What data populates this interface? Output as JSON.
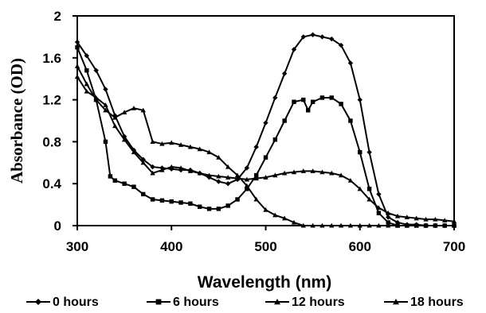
{
  "chart_data": {
    "type": "line",
    "xlabel": "Wavelength (nm)",
    "ylabel": "Absorbance (OD)",
    "xlim": [
      300,
      700
    ],
    "ylim": [
      0,
      2
    ],
    "x_ticks": [
      300,
      400,
      500,
      600,
      700
    ],
    "y_ticks": [
      0,
      0.4,
      0.8,
      1.2,
      1.6,
      2
    ],
    "y_tick_labels": [
      "0",
      "0.4",
      "0.8",
      "1.2",
      "1.6",
      "2"
    ],
    "grid": false,
    "legend_position": "bottom",
    "line_color": "#000000",
    "series": [
      {
        "name": "0 hours",
        "marker": "diamond",
        "points": [
          [
            300,
            1.75
          ],
          [
            310,
            1.62
          ],
          [
            320,
            1.48
          ],
          [
            330,
            1.3
          ],
          [
            340,
            1.05
          ],
          [
            350,
            0.85
          ],
          [
            360,
            0.72
          ],
          [
            370,
            0.63
          ],
          [
            380,
            0.56
          ],
          [
            390,
            0.55
          ],
          [
            400,
            0.54
          ],
          [
            410,
            0.53
          ],
          [
            420,
            0.53
          ],
          [
            430,
            0.5
          ],
          [
            440,
            0.46
          ],
          [
            450,
            0.42
          ],
          [
            460,
            0.4
          ],
          [
            470,
            0.44
          ],
          [
            480,
            0.55
          ],
          [
            490,
            0.75
          ],
          [
            500,
            0.98
          ],
          [
            510,
            1.22
          ],
          [
            520,
            1.45
          ],
          [
            530,
            1.68
          ],
          [
            540,
            1.8
          ],
          [
            550,
            1.82
          ],
          [
            560,
            1.8
          ],
          [
            570,
            1.78
          ],
          [
            580,
            1.72
          ],
          [
            590,
            1.55
          ],
          [
            600,
            1.2
          ],
          [
            610,
            0.7
          ],
          [
            620,
            0.3
          ],
          [
            630,
            0.08
          ],
          [
            640,
            0.03
          ],
          [
            650,
            0.01
          ],
          [
            660,
            0.01
          ],
          [
            670,
            0.0
          ],
          [
            680,
            0.0
          ],
          [
            690,
            0.0
          ],
          [
            700,
            0.0
          ]
        ]
      },
      {
        "name": "6 hours",
        "marker": "square",
        "points": [
          [
            300,
            1.7
          ],
          [
            310,
            1.48
          ],
          [
            320,
            1.2
          ],
          [
            330,
            0.8
          ],
          [
            335,
            0.47
          ],
          [
            340,
            0.43
          ],
          [
            350,
            0.4
          ],
          [
            360,
            0.37
          ],
          [
            370,
            0.3
          ],
          [
            380,
            0.25
          ],
          [
            390,
            0.24
          ],
          [
            400,
            0.23
          ],
          [
            410,
            0.22
          ],
          [
            420,
            0.21
          ],
          [
            430,
            0.18
          ],
          [
            440,
            0.16
          ],
          [
            450,
            0.16
          ],
          [
            460,
            0.19
          ],
          [
            470,
            0.25
          ],
          [
            480,
            0.35
          ],
          [
            490,
            0.48
          ],
          [
            500,
            0.65
          ],
          [
            510,
            0.82
          ],
          [
            520,
            1.0
          ],
          [
            530,
            1.18
          ],
          [
            540,
            1.2
          ],
          [
            545,
            1.1
          ],
          [
            550,
            1.18
          ],
          [
            560,
            1.22
          ],
          [
            570,
            1.22
          ],
          [
            580,
            1.16
          ],
          [
            590,
            1.0
          ],
          [
            600,
            0.7
          ],
          [
            610,
            0.35
          ],
          [
            620,
            0.12
          ],
          [
            630,
            0.03
          ],
          [
            640,
            0.0
          ],
          [
            650,
            0.0
          ],
          [
            660,
            0.0
          ],
          [
            670,
            0.0
          ],
          [
            680,
            0.0
          ],
          [
            690,
            0.0
          ],
          [
            700,
            0.0
          ]
        ]
      },
      {
        "name": "12 hours",
        "marker": "triangle",
        "points": [
          [
            300,
            1.52
          ],
          [
            310,
            1.35
          ],
          [
            320,
            1.2
          ],
          [
            330,
            1.1
          ],
          [
            340,
            1.03
          ],
          [
            350,
            1.08
          ],
          [
            360,
            1.12
          ],
          [
            370,
            1.1
          ],
          [
            380,
            0.8
          ],
          [
            390,
            0.78
          ],
          [
            400,
            0.79
          ],
          [
            410,
            0.77
          ],
          [
            420,
            0.75
          ],
          [
            430,
            0.73
          ],
          [
            440,
            0.7
          ],
          [
            450,
            0.65
          ],
          [
            460,
            0.56
          ],
          [
            470,
            0.48
          ],
          [
            480,
            0.38
          ],
          [
            490,
            0.25
          ],
          [
            500,
            0.15
          ],
          [
            510,
            0.1
          ],
          [
            520,
            0.07
          ],
          [
            530,
            0.03
          ],
          [
            540,
            0.0
          ],
          [
            550,
            0.0
          ],
          [
            560,
            0.0
          ],
          [
            570,
            0.0
          ],
          [
            580,
            0.0
          ],
          [
            590,
            0.0
          ],
          [
            600,
            0.0
          ],
          [
            610,
            0.0
          ],
          [
            620,
            0.0
          ],
          [
            630,
            0.0
          ],
          [
            640,
            0.0
          ],
          [
            650,
            0.0
          ],
          [
            660,
            0.0
          ],
          [
            670,
            0.0
          ],
          [
            680,
            0.0
          ],
          [
            690,
            0.0
          ],
          [
            700,
            0.0
          ]
        ]
      },
      {
        "name": "18 hours",
        "marker": "triangle",
        "points": [
          [
            300,
            1.42
          ],
          [
            310,
            1.28
          ],
          [
            320,
            1.22
          ],
          [
            330,
            1.15
          ],
          [
            340,
            0.95
          ],
          [
            350,
            0.82
          ],
          [
            360,
            0.7
          ],
          [
            370,
            0.6
          ],
          [
            380,
            0.5
          ],
          [
            390,
            0.53
          ],
          [
            400,
            0.56
          ],
          [
            410,
            0.55
          ],
          [
            420,
            0.52
          ],
          [
            430,
            0.5
          ],
          [
            440,
            0.48
          ],
          [
            450,
            0.47
          ],
          [
            460,
            0.46
          ],
          [
            470,
            0.45
          ],
          [
            480,
            0.44
          ],
          [
            490,
            0.45
          ],
          [
            500,
            0.46
          ],
          [
            510,
            0.48
          ],
          [
            520,
            0.5
          ],
          [
            530,
            0.51
          ],
          [
            540,
            0.52
          ],
          [
            550,
            0.52
          ],
          [
            560,
            0.51
          ],
          [
            570,
            0.5
          ],
          [
            580,
            0.48
          ],
          [
            590,
            0.43
          ],
          [
            600,
            0.35
          ],
          [
            610,
            0.25
          ],
          [
            620,
            0.17
          ],
          [
            630,
            0.12
          ],
          [
            640,
            0.09
          ],
          [
            650,
            0.08
          ],
          [
            660,
            0.07
          ],
          [
            670,
            0.06
          ],
          [
            680,
            0.06
          ],
          [
            690,
            0.05
          ],
          [
            700,
            0.04
          ]
        ]
      }
    ]
  }
}
